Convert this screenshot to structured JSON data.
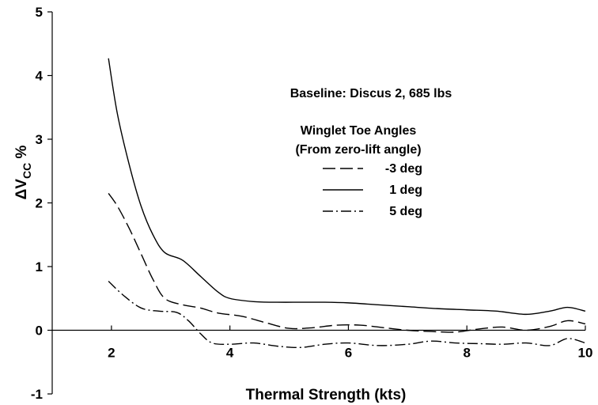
{
  "chart_data": {
    "type": "line",
    "title": "",
    "xlabel": "Thermal Strength (kts)",
    "ylabel_main": "ΔV",
    "ylabel_sub": "CC",
    "ylabel_unit": " %",
    "xlim": [
      1.0,
      10.0
    ],
    "ylim": [
      -1,
      5
    ],
    "xticks": [
      2,
      4,
      6,
      8,
      10
    ],
    "yticks": [
      -1,
      0,
      1,
      2,
      3,
      4,
      5
    ],
    "grid": false,
    "zero_line": true,
    "annotation": "Baseline: Discus 2, 685 lbs",
    "legend_title_1": "Winglet Toe Angles",
    "legend_title_2": "(From zero-lift angle)",
    "legend_position": "upper-right",
    "series": [
      {
        "name": "-3 deg",
        "dash": "long-dash",
        "x": [
          1.95,
          2.1,
          2.3,
          2.5,
          2.7,
          2.9,
          3.2,
          3.5,
          3.8,
          4.2,
          4.6,
          5.0,
          5.4,
          5.8,
          6.2,
          6.6,
          7.0,
          7.4,
          7.8,
          8.2,
          8.6,
          9.0,
          9.4,
          9.7,
          10.0
        ],
        "y": [
          2.15,
          1.95,
          1.6,
          1.2,
          0.8,
          0.5,
          0.4,
          0.35,
          0.27,
          0.22,
          0.12,
          0.03,
          0.04,
          0.08,
          0.08,
          0.04,
          0.0,
          -0.02,
          -0.03,
          0.02,
          0.05,
          0.0,
          0.06,
          0.15,
          0.1
        ]
      },
      {
        "name": "1 deg",
        "dash": "solid",
        "x": [
          1.95,
          2.1,
          2.3,
          2.5,
          2.7,
          2.9,
          3.2,
          3.5,
          3.8,
          4.0,
          4.4,
          4.8,
          5.2,
          5.6,
          6.0,
          6.5,
          7.0,
          7.5,
          8.0,
          8.5,
          9.0,
          9.4,
          9.7,
          10.0
        ],
        "y": [
          4.27,
          3.4,
          2.6,
          1.95,
          1.5,
          1.22,
          1.1,
          0.85,
          0.6,
          0.5,
          0.45,
          0.44,
          0.44,
          0.44,
          0.43,
          0.4,
          0.37,
          0.34,
          0.32,
          0.3,
          0.25,
          0.3,
          0.36,
          0.3
        ]
      },
      {
        "name": "5 deg",
        "dash": "dash-dot",
        "x": [
          1.95,
          2.2,
          2.5,
          2.8,
          3.1,
          3.3,
          3.5,
          3.7,
          4.0,
          4.4,
          4.8,
          5.2,
          5.6,
          6.0,
          6.5,
          7.0,
          7.4,
          7.8,
          8.2,
          8.6,
          9.0,
          9.4,
          9.7,
          10.0
        ],
        "y": [
          0.77,
          0.55,
          0.35,
          0.3,
          0.28,
          0.15,
          -0.05,
          -0.2,
          -0.22,
          -0.2,
          -0.25,
          -0.27,
          -0.22,
          -0.2,
          -0.24,
          -0.22,
          -0.17,
          -0.2,
          -0.21,
          -0.22,
          -0.2,
          -0.24,
          -0.13,
          -0.2
        ]
      }
    ]
  }
}
